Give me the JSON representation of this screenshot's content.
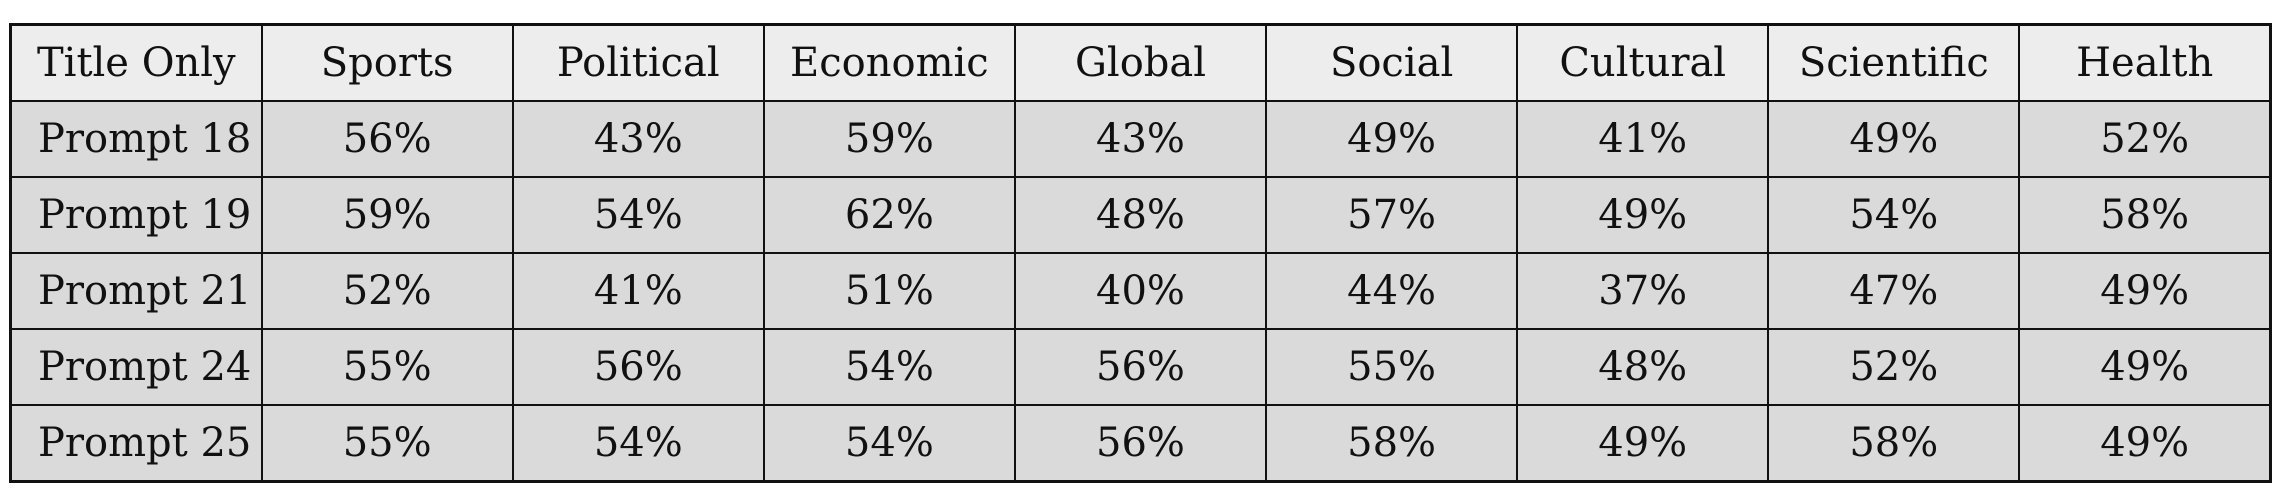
{
  "table": {
    "corner_label": "Title Only",
    "columns": [
      "Sports",
      "Political",
      "Economic",
      "Global",
      "Social",
      "Cultural",
      "Scientific",
      "Health"
    ],
    "rows": [
      {
        "label": "Prompt 18",
        "cells": [
          "56%",
          "43%",
          "59%",
          "43%",
          "49%",
          "41%",
          "49%",
          "52%"
        ]
      },
      {
        "label": "Prompt 19",
        "cells": [
          "59%",
          "54%",
          "62%",
          "48%",
          "57%",
          "49%",
          "54%",
          "58%"
        ]
      },
      {
        "label": "Prompt 21",
        "cells": [
          "52%",
          "41%",
          "51%",
          "40%",
          "44%",
          "37%",
          "47%",
          "49%"
        ]
      },
      {
        "label": "Prompt 24",
        "cells": [
          "55%",
          "56%",
          "54%",
          "56%",
          "55%",
          "48%",
          "52%",
          "49%"
        ]
      },
      {
        "label": "Prompt 25",
        "cells": [
          "55%",
          "54%",
          "54%",
          "56%",
          "58%",
          "49%",
          "58%",
          "49%"
        ]
      }
    ]
  }
}
